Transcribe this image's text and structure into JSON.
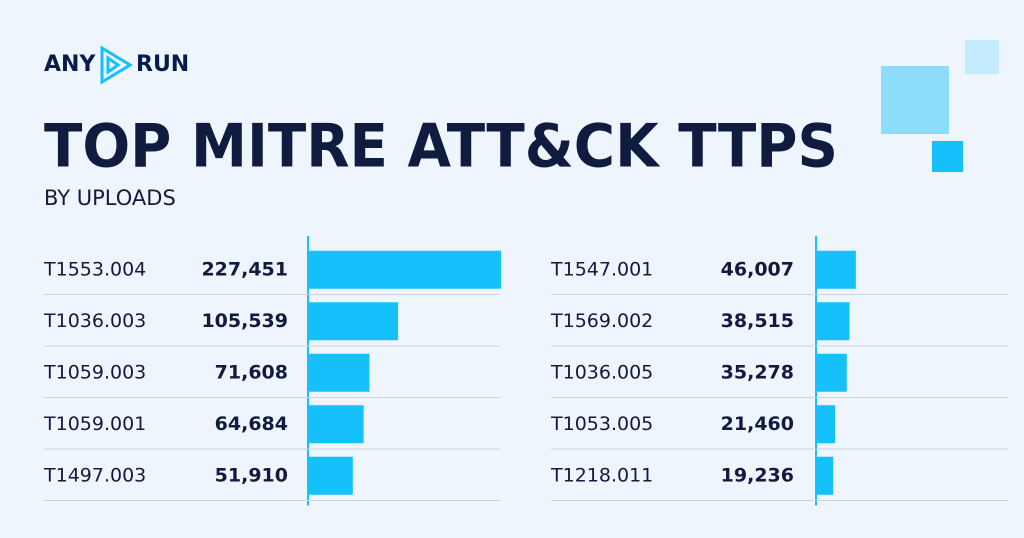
{
  "brand": {
    "left": "ANY",
    "right": "RUN"
  },
  "title": "TOP MITRE ATT&CK TTPS",
  "subtitle": "BY UPLOADS",
  "chart_data": [
    {
      "type": "bar",
      "orientation": "horizontal",
      "color": "#16c0fb",
      "categories": [
        "T1553.004",
        "T1036.003",
        "T1059.003",
        "T1059.001",
        "T1497.003"
      ],
      "values": [
        227451,
        105539,
        71608,
        64684,
        51910
      ],
      "value_labels": [
        "227,451",
        "105,539",
        "71,608",
        "64,684",
        "51,910"
      ]
    },
    {
      "type": "bar",
      "orientation": "horizontal",
      "color": "#16c0fb",
      "categories": [
        "T1547.001",
        "T1569.002",
        "T1036.005",
        "T1053.005",
        "T1218.011"
      ],
      "values": [
        46007,
        38515,
        35278,
        21460,
        19236
      ],
      "value_labels": [
        "46,007",
        "38,515",
        "35,278",
        "21,460",
        "19,236"
      ]
    }
  ]
}
